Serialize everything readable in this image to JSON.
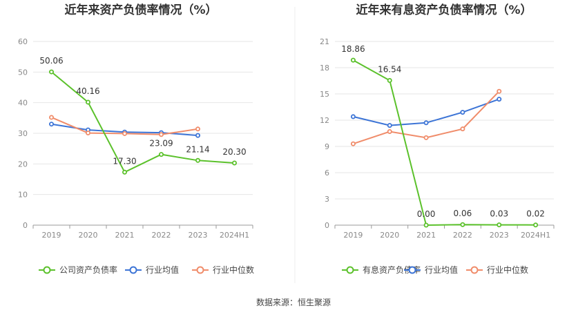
{
  "source": "数据来源：恒生聚源",
  "chart_data": [
    {
      "type": "line",
      "title": "近年来资产负债率情况（%）",
      "categories": [
        "2019",
        "2020",
        "2021",
        "2022",
        "2023",
        "2024H1"
      ],
      "ylim": [
        0,
        60
      ],
      "yticks": [
        0,
        10,
        20,
        30,
        40,
        50,
        60
      ],
      "grid": true,
      "legend_position": "bottom",
      "series": [
        {
          "name": "公司资产负债率",
          "color": "#5bc12b",
          "values": [
            50.06,
            40.16,
            17.3,
            23.09,
            21.14,
            20.3
          ],
          "labels": [
            "50.06",
            "40.16",
            "17.30",
            "23.09",
            "21.14",
            "20.30"
          ]
        },
        {
          "name": "行业均值",
          "color": "#3c74d6",
          "values": [
            33.0,
            31.1,
            30.4,
            30.2,
            29.3,
            null
          ],
          "labels": []
        },
        {
          "name": "行业中位数",
          "color": "#f08c6a",
          "values": [
            35.2,
            30.1,
            29.9,
            29.6,
            31.4,
            null
          ],
          "labels": []
        }
      ]
    },
    {
      "type": "line",
      "title": "近年来有息资产负债率情况（%）",
      "categories": [
        "2019",
        "2020",
        "2021",
        "2022",
        "2023",
        "2024H1"
      ],
      "ylim": [
        0,
        21
      ],
      "yticks": [
        0,
        3,
        6,
        9,
        12,
        15,
        18,
        21
      ],
      "grid": true,
      "legend_position": "bottom",
      "series": [
        {
          "name": "有息资产负债率",
          "color": "#5bc12b",
          "values": [
            18.86,
            16.54,
            0.0,
            0.06,
            0.03,
            0.02
          ],
          "labels": [
            "18.86",
            "16.54",
            "0.00",
            "0.06",
            "0.03",
            "0.02"
          ]
        },
        {
          "name": "行业均值",
          "color": "#3c74d6",
          "values": [
            12.4,
            11.4,
            11.7,
            12.9,
            14.4,
            null
          ],
          "labels": []
        },
        {
          "name": "行业中位数",
          "color": "#f08c6a",
          "values": [
            9.3,
            10.7,
            10.0,
            11.0,
            15.3,
            null
          ],
          "labels": []
        }
      ]
    }
  ]
}
